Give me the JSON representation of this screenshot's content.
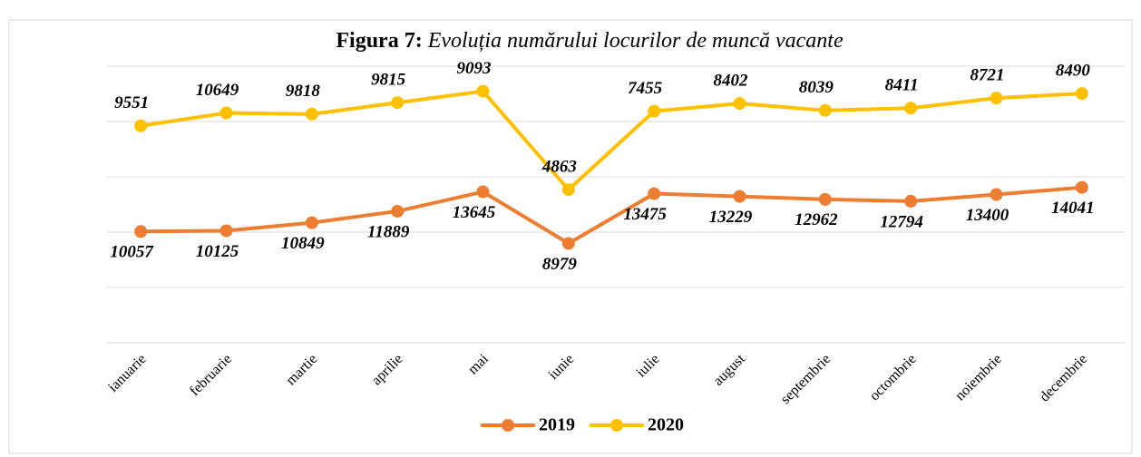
{
  "chart_data": {
    "type": "line",
    "stacked": true,
    "title_label": "Figura 7:",
    "title": "Evoluția numărului locurilor de muncă vacante",
    "categories": [
      "ianuarie",
      "februarie",
      "martie",
      "aprilie",
      "mai",
      "iunie",
      "iulie",
      "august",
      "septembrie",
      "octombrie",
      "noiembrie",
      "decembrie"
    ],
    "series": [
      {
        "name": "2019",
        "color": "#ed7d31",
        "values": [
          10057,
          10125,
          10849,
          11889,
          13645,
          8979,
          13475,
          13229,
          12962,
          12794,
          13400,
          14041
        ]
      },
      {
        "name": "2020",
        "color": "#ffc000",
        "values": [
          9551,
          10649,
          9818,
          9815,
          9093,
          4863,
          7455,
          8402,
          8039,
          8411,
          8721,
          8490
        ]
      }
    ],
    "ylim": [
      0,
      25000
    ],
    "yticks": [
      0,
      5000,
      10000,
      15000,
      20000,
      25000
    ],
    "grid": true,
    "legend": "bottom"
  }
}
